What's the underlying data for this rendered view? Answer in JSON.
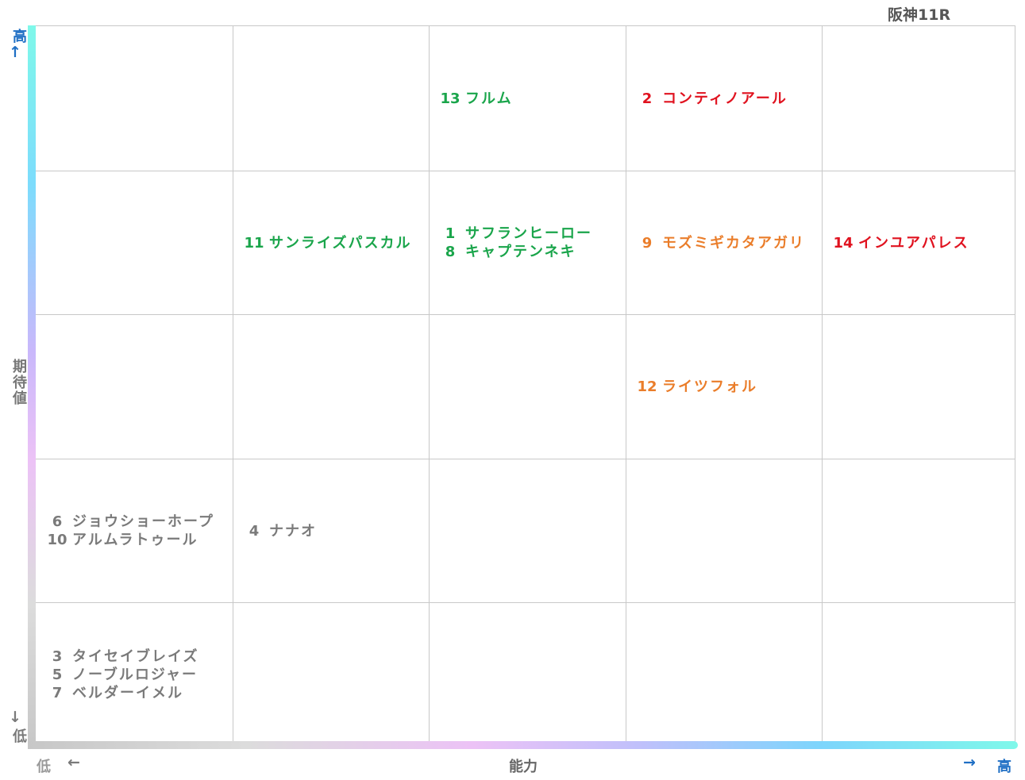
{
  "chart_data": {
    "type": "table",
    "title": "阪神11R",
    "xlabel": "能力",
    "ylabel": "期待値",
    "x_low_label": "低",
    "x_high_label": "高",
    "y_low_label": "低",
    "y_high_label": "高",
    "x_arrow_low": "←",
    "x_arrow_high": "→",
    "y_arrow_high": "↑",
    "y_arrow_low": "↓",
    "columns": 5,
    "rows": 5,
    "colors": {
      "top": "#e0121f",
      "green": "#1aa54b",
      "orange": "#ea7d2a",
      "gray": "#7a7a7a"
    },
    "cells": [
      {
        "col": 3,
        "row": 1,
        "tier": "green",
        "horses": [
          {
            "number": "13",
            "name": "フルム"
          }
        ]
      },
      {
        "col": 4,
        "row": 1,
        "tier": "top",
        "horses": [
          {
            "number": "2",
            "name": "コンティノアール"
          }
        ]
      },
      {
        "col": 2,
        "row": 2,
        "tier": "green",
        "horses": [
          {
            "number": "11",
            "name": "サンライズパスカル"
          }
        ]
      },
      {
        "col": 3,
        "row": 2,
        "tier": "green",
        "horses": [
          {
            "number": "1",
            "name": "サフランヒーロー"
          },
          {
            "number": "8",
            "name": "キャプテンネキ"
          }
        ]
      },
      {
        "col": 4,
        "row": 2,
        "tier": "orange",
        "horses": [
          {
            "number": "9",
            "name": "モズミギカタアガリ"
          }
        ]
      },
      {
        "col": 5,
        "row": 2,
        "tier": "top",
        "horses": [
          {
            "number": "14",
            "name": "インユアパレス"
          }
        ]
      },
      {
        "col": 4,
        "row": 3,
        "tier": "orange",
        "horses": [
          {
            "number": "12",
            "name": "ライツフォル"
          }
        ]
      },
      {
        "col": 1,
        "row": 4,
        "tier": "gray",
        "horses": [
          {
            "number": "6",
            "name": "ジョウショーホープ"
          },
          {
            "number": "10",
            "name": "アルムラトゥール"
          }
        ]
      },
      {
        "col": 2,
        "row": 4,
        "tier": "gray",
        "horses": [
          {
            "number": "4",
            "name": "ナナオ"
          }
        ]
      },
      {
        "col": 1,
        "row": 5,
        "tier": "gray",
        "horses": [
          {
            "number": "3",
            "name": "タイセイブレイズ"
          },
          {
            "number": "5",
            "name": "ノーブルロジャー"
          },
          {
            "number": "7",
            "name": "ベルダーイメル"
          }
        ]
      }
    ]
  }
}
